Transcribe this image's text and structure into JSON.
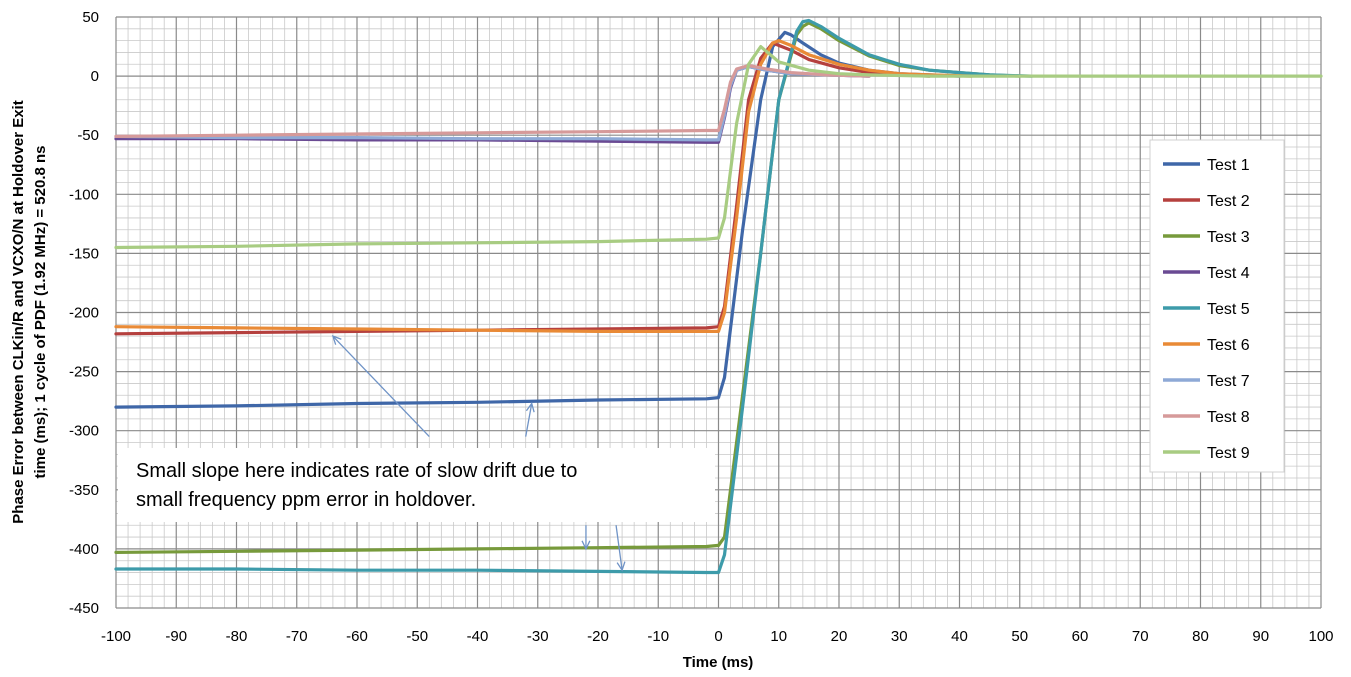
{
  "chart_data": {
    "type": "line",
    "xlabel": "Time (ms)",
    "ylabel_lines": [
      "Phase Error between CLKin/R and VCXO/N at Holdover Exit",
      "time (ms); 1 cycle of PDF (1.92 MHz) = 520.8 ns"
    ],
    "xlim": [
      -100,
      100
    ],
    "ylim": [
      -450,
      50
    ],
    "x_ticks": [
      -100,
      -90,
      -80,
      -70,
      -60,
      -50,
      -40,
      -30,
      -20,
      -10,
      0,
      10,
      20,
      30,
      40,
      50,
      60,
      70,
      80,
      90,
      100
    ],
    "y_ticks": [
      50,
      0,
      -50,
      -100,
      -150,
      -200,
      -250,
      -300,
      -350,
      -400,
      -450
    ],
    "grid": true,
    "legend_position": "right",
    "annotation": {
      "lines": [
        "Small slope here indicates rate of slow drift due to",
        "small frequency ppm error in holdover."
      ]
    },
    "series": [
      {
        "name": "Test 1",
        "color": "#3F67A8",
        "x": [
          -100,
          -80,
          -60,
          -40,
          -20,
          -2,
          0,
          1,
          4,
          7,
          9,
          11,
          12,
          14,
          17,
          20,
          25,
          30,
          35,
          40
        ],
        "y": [
          -280,
          -279,
          -277,
          -276,
          -274,
          -273,
          -272,
          -255,
          -130,
          -20,
          25,
          37,
          35,
          28,
          18,
          11,
          5,
          2,
          1,
          0
        ]
      },
      {
        "name": "Test 2",
        "color": "#B5403E",
        "x": [
          -100,
          -80,
          -60,
          -40,
          -20,
          -2,
          0,
          1,
          3,
          5,
          7,
          9,
          12,
          15,
          20,
          25,
          30,
          35
        ],
        "y": [
          -218,
          -217,
          -216,
          -215,
          -214,
          -213,
          -212,
          -195,
          -110,
          -20,
          15,
          28,
          22,
          14,
          7,
          3,
          1,
          0
        ]
      },
      {
        "name": "Test 3",
        "color": "#779A3B",
        "x": [
          -100,
          -80,
          -60,
          -40,
          -20,
          -2,
          0,
          1,
          4,
          7,
          10,
          13,
          14,
          15,
          17,
          20,
          25,
          30,
          35,
          40,
          45,
          50
        ],
        "y": [
          -403,
          -402,
          -401,
          -400,
          -399,
          -398,
          -397,
          -390,
          -270,
          -150,
          -20,
          35,
          42,
          45,
          40,
          30,
          17,
          9,
          5,
          3,
          1,
          0
        ]
      },
      {
        "name": "Test 4",
        "color": "#6A4A93",
        "x": [
          -100,
          -80,
          -60,
          -40,
          -20,
          -2,
          0,
          1,
          2,
          3,
          5,
          8,
          12,
          18,
          25
        ],
        "y": [
          -53,
          -53,
          -54,
          -54,
          -55,
          -56,
          -56,
          -35,
          -10,
          5,
          8,
          5,
          2,
          1,
          0
        ]
      },
      {
        "name": "Test 5",
        "color": "#3D9BAA",
        "x": [
          -100,
          -80,
          -60,
          -40,
          -20,
          -2,
          0,
          1,
          4,
          7,
          10,
          13,
          14,
          15,
          17,
          20,
          25,
          30,
          35,
          40,
          45,
          52
        ],
        "y": [
          -417,
          -417,
          -418,
          -418,
          -419,
          -420,
          -420,
          -405,
          -280,
          -150,
          -20,
          38,
          46,
          47,
          42,
          32,
          18,
          10,
          5,
          3,
          1,
          0
        ]
      },
      {
        "name": "Test 6",
        "color": "#E98A36",
        "x": [
          -100,
          -80,
          -60,
          -40,
          -20,
          -2,
          0,
          1,
          3,
          5,
          7,
          9,
          10,
          12,
          15,
          20,
          25,
          30,
          35,
          42
        ],
        "y": [
          -212,
          -213,
          -214,
          -215,
          -216,
          -216,
          -216,
          -200,
          -120,
          -30,
          10,
          28,
          30,
          26,
          18,
          10,
          5,
          2,
          1,
          0
        ]
      },
      {
        "name": "Test 7",
        "color": "#8EA9D6",
        "x": [
          -100,
          -80,
          -60,
          -40,
          -20,
          -2,
          0,
          1,
          2,
          3,
          5,
          8,
          12,
          18,
          25
        ],
        "y": [
          -51,
          -52,
          -52,
          -53,
          -53,
          -54,
          -54,
          -33,
          -8,
          5,
          8,
          5,
          2,
          1,
          0
        ]
      },
      {
        "name": "Test 8",
        "color": "#D69A9A",
        "x": [
          -100,
          -80,
          -60,
          -40,
          -20,
          -2,
          0,
          1,
          2,
          3,
          5,
          8,
          12,
          18,
          25
        ],
        "y": [
          -51,
          -50,
          -49,
          -48,
          -47,
          -46,
          -46,
          -28,
          -5,
          6,
          9,
          6,
          3,
          1,
          0
        ]
      },
      {
        "name": "Test 9",
        "color": "#A8CC82",
        "x": [
          -100,
          -80,
          -60,
          -40,
          -20,
          -2,
          0,
          1,
          3,
          5,
          7,
          10,
          15,
          20,
          25,
          35,
          100
        ],
        "y": [
          -145,
          -144,
          -142,
          -141,
          -140,
          -138,
          -137,
          -120,
          -40,
          10,
          25,
          12,
          5,
          2,
          1,
          0,
          0
        ]
      }
    ]
  }
}
